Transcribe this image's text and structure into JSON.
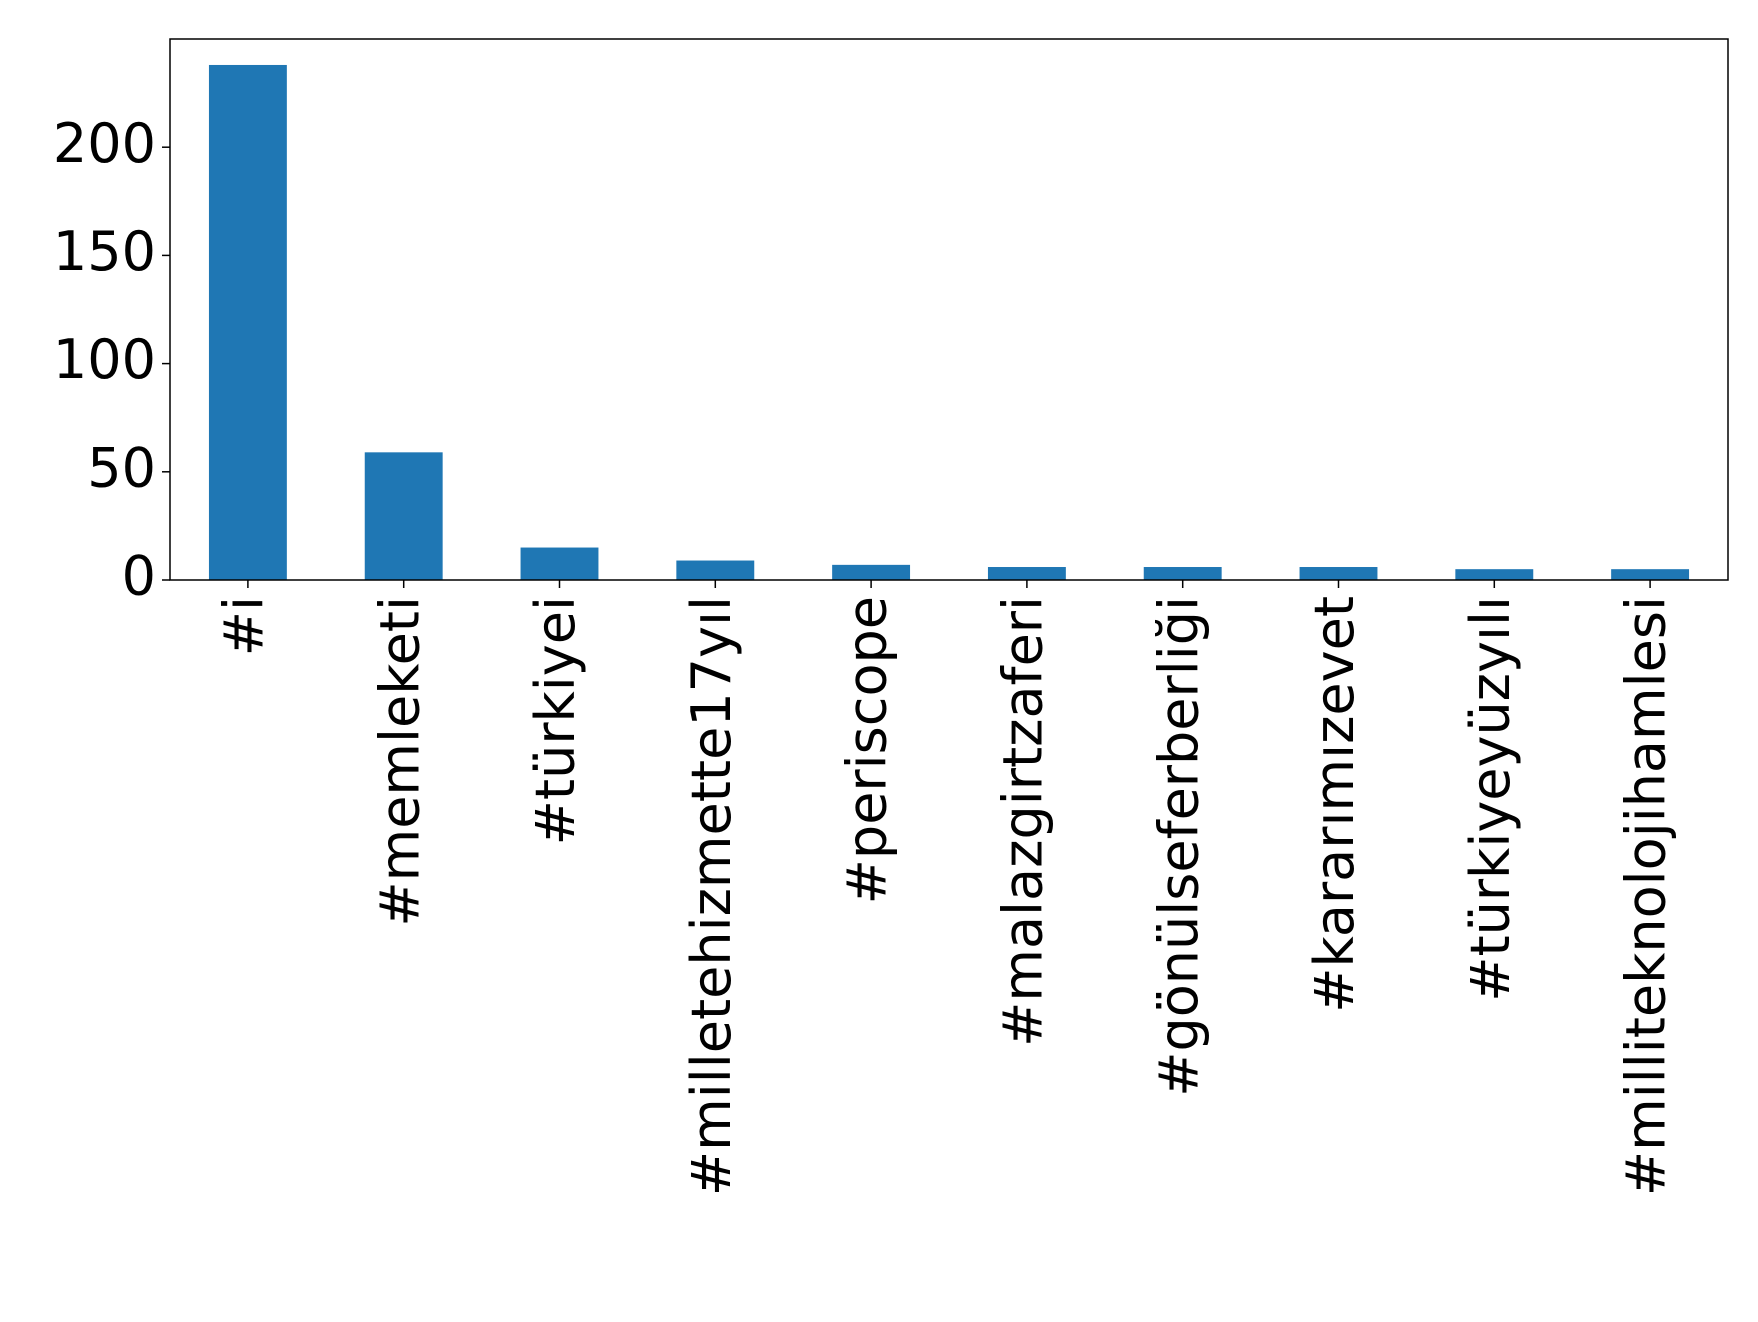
{
  "chart_data": {
    "type": "bar",
    "categories": [
      "#i",
      "#memleketi",
      "#türkiyei",
      "#milletehizmette17yıl",
      "#periscope",
      "#malazgirtzaferi",
      "#gönülseferberliği",
      "#kararımızevet",
      "#türkiyeyüzyılı",
      "#milliteknolojihamlesi"
    ],
    "values": [
      238,
      59,
      15,
      9,
      7,
      6,
      6,
      6,
      5,
      5
    ],
    "color": "#1f77b4",
    "ylim": [
      0,
      250
    ],
    "yticks": [
      0,
      50,
      100,
      150,
      200
    ],
    "grid": false
  }
}
